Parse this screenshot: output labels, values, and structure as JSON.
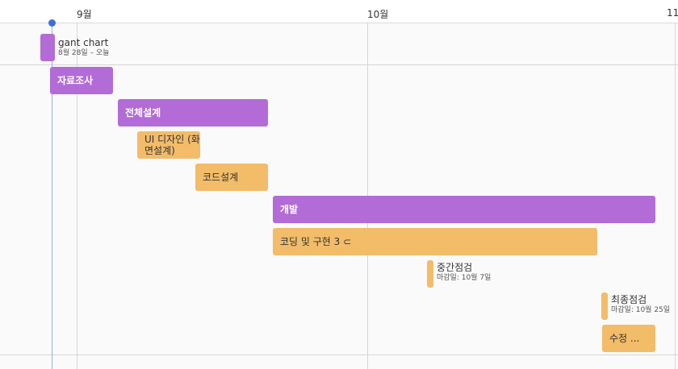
{
  "timeline": {
    "months": [
      "9월",
      "10월",
      "11"
    ]
  },
  "project": {
    "title": "gant chart",
    "subtitle": "8월 28일 – 오늘"
  },
  "tasks": [
    {
      "label": "자료조사"
    },
    {
      "label": "전체설계"
    },
    {
      "label": "UI 디자인 (화면설계)"
    },
    {
      "label": "코드설계"
    },
    {
      "label": "개발"
    },
    {
      "label": "코딩 및 구현 3",
      "icon": "link-icon",
      "glyph": "⊂"
    },
    {
      "label": "수정 ..."
    }
  ],
  "milestones": [
    {
      "title": "중간점검",
      "subtitle": "마감일: 10월 7일"
    },
    {
      "title": "최종점검",
      "subtitle": "마감일: 10월 25일"
    }
  ],
  "colors": {
    "summary": "#b36bd8",
    "task": "#f2bc69",
    "today": "#3d6fd6"
  }
}
